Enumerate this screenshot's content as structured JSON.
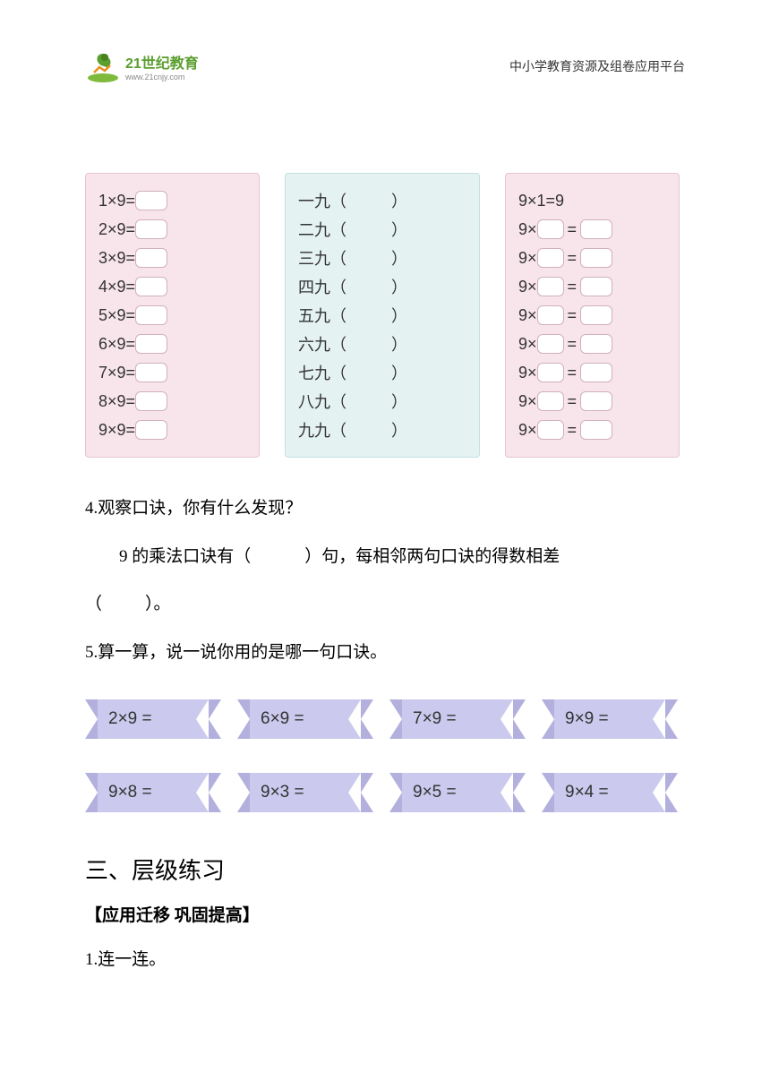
{
  "header": {
    "logo_text_top": "21世纪教育",
    "logo_text_bottom": "www.21cnjy.com",
    "subtitle": "中小学教育资源及组卷应用平台"
  },
  "columns": {
    "left": {
      "bg_color": "#f8e5eb",
      "rows": [
        "1×9=",
        "2×9=",
        "3×9=",
        "4×9=",
        "5×9=",
        "6×9=",
        "7×9=",
        "8×9=",
        "9×9="
      ]
    },
    "middle": {
      "bg_color": "#e5f2f2",
      "rows": [
        "一九（",
        "二九（",
        "三九（",
        "四九（",
        "五九（",
        "六九（",
        "七九（",
        "八九（",
        "九九（"
      ],
      "suffix": "）"
    },
    "right": {
      "bg_color": "#f8e5eb",
      "first_row": "9×1=9",
      "blank_rows_count": 8,
      "prefix": "9×",
      "middle": "="
    }
  },
  "questions": {
    "q4_line1": "4.观察口诀，你有什么发现？",
    "q4_line2_a": "9 的乘法口诀有（",
    "q4_line2_b": "）句，每相邻两句口诀的得数相差",
    "q4_line3_a": "（",
    "q4_line3_b": "）。",
    "q5": "5.算一算，说一说你用的是哪一句口诀。"
  },
  "ribbons": {
    "row1": [
      "2×9 =",
      "6×9 =",
      "7×9 =",
      "9×9 ="
    ],
    "row2": [
      "9×8 =",
      "9×3 =",
      "9×5 =",
      "9×4 ="
    ],
    "bg_color": "#cbc9ed",
    "edge_color": "#b3b0dd"
  },
  "section": {
    "title": "三、层级练习",
    "subtitle": "【应用迁移  巩固提高】",
    "q1": "1.连一连。"
  }
}
